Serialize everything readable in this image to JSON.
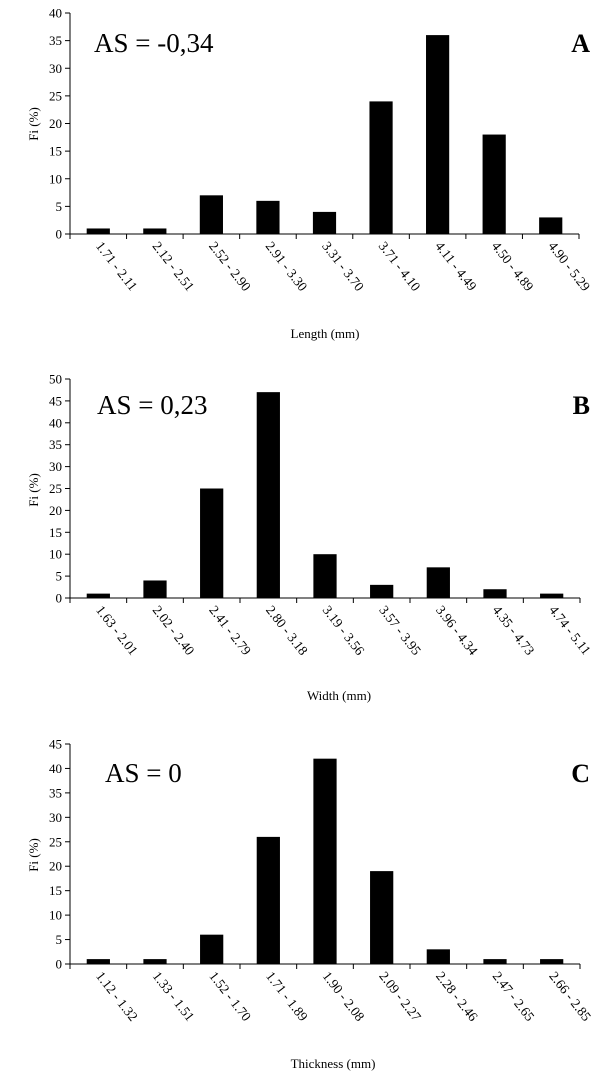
{
  "chart_data": [
    {
      "type": "bar",
      "panel_label": "A",
      "annotation": "AS = -0,34",
      "xlabel": "Length (mm)",
      "ylabel": "Fi (%)",
      "ylim": [
        0,
        40
      ],
      "yticks": [
        "0",
        "5",
        "10",
        "15",
        "20",
        "25",
        "30",
        "35",
        "40"
      ],
      "categories": [
        "1.71 - 2.11",
        "2.12 - 2.51",
        "2.52 - 2.90",
        "2.91 - 3.30",
        "3.31 - 3.70",
        "3.71 - 4.10",
        "4.11 - 4.49",
        "4.50 - 4.89",
        "4.90 - 5.29"
      ],
      "values": [
        1,
        1,
        7,
        6,
        4,
        24,
        36,
        18,
        3
      ]
    },
    {
      "type": "bar",
      "panel_label": "B",
      "annotation": "AS = 0,23",
      "xlabel": "Width (mm)",
      "ylabel": "Fi (%)",
      "ylim": [
        0,
        50
      ],
      "yticks": [
        "0",
        "5",
        "10",
        "15",
        "20",
        "25",
        "30",
        "35",
        "40",
        "45",
        "50"
      ],
      "categories": [
        "1.63 - 2.01",
        "2.02 - 2.40",
        "2.41 - 2.79",
        "2.80 - 3.18",
        "3.19 - 3.56",
        "3.57 - 3.95",
        "3.96 - 4.34",
        "4.35 - 4.73",
        "4.74 - 5.11"
      ],
      "values": [
        1,
        4,
        25,
        47,
        10,
        3,
        7,
        2,
        1
      ]
    },
    {
      "type": "bar",
      "panel_label": "C",
      "annotation": "AS = 0",
      "xlabel": "Thickness (mm)",
      "ylabel": "Fi (%)",
      "ylim": [
        0,
        45
      ],
      "yticks": [
        "0",
        "5",
        "10",
        "15",
        "20",
        "25",
        "30",
        "35",
        "40",
        "45"
      ],
      "categories": [
        "1.12 - 1.32",
        "1.33 - 1.51",
        "1.52 - 1.70",
        "1.71 - 1.89",
        "1.90 - 2.08",
        "2.09 - 2.27",
        "2.28 - 2.46",
        "2.47 - 2.65",
        "2.66 - 2.85"
      ],
      "values": [
        1,
        1,
        6,
        26,
        42,
        19,
        3,
        1,
        1
      ]
    }
  ]
}
